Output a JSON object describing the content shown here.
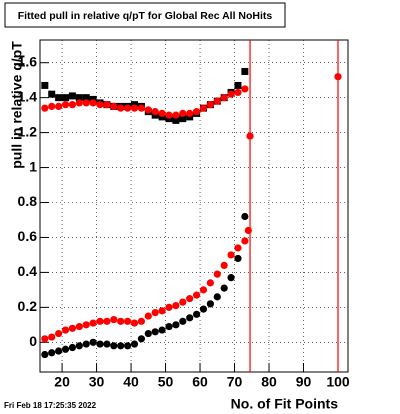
{
  "chart_data": {
    "type": "scatter",
    "title": "Fitted pull in relative q/pT for Global Rec All NoHits",
    "y_label": "pull in relative q/pT",
    "x_label": "No. of Fit Points",
    "timestamp": "Fri Feb 18 17:25:35 2022",
    "xlim": [
      13.6,
      102.9
    ],
    "ylim": [
      -0.17,
      1.73
    ],
    "xticks": [
      20,
      30,
      40,
      50,
      60,
      70,
      80,
      90,
      100
    ],
    "yticks": [
      0,
      0.2,
      0.4,
      0.6,
      0.8,
      1,
      1.2,
      1.4,
      1.6
    ],
    "grid": true,
    "vlines": [
      74.5,
      100
    ],
    "vline_color": "#ff0000",
    "series": [
      {
        "color": "#000000",
        "marker": "square",
        "x": [
          15,
          17,
          19,
          21,
          23,
          25,
          27,
          29,
          31,
          33,
          35,
          37,
          39,
          41,
          43,
          45,
          47,
          49,
          51,
          53,
          55,
          57,
          59,
          61,
          63,
          65,
          67,
          69,
          71,
          73
        ],
        "values": [
          1.47,
          1.42,
          1.4,
          1.4,
          1.41,
          1.4,
          1.4,
          1.39,
          1.37,
          1.36,
          1.35,
          1.35,
          1.35,
          1.36,
          1.35,
          1.32,
          1.3,
          1.29,
          1.28,
          1.27,
          1.28,
          1.29,
          1.31,
          1.34,
          1.36,
          1.38,
          1.4,
          1.43,
          1.47,
          1.55
        ]
      },
      {
        "color": "#ff0000",
        "marker": "circle",
        "x": [
          15,
          17,
          19,
          21,
          23,
          25,
          27,
          29,
          31,
          33,
          35,
          37,
          39,
          41,
          43,
          45,
          47,
          49,
          51,
          53,
          55,
          57,
          59,
          61,
          63,
          65,
          67,
          69,
          71,
          73,
          74.5,
          100
        ],
        "values": [
          1.34,
          1.35,
          1.35,
          1.36,
          1.36,
          1.37,
          1.37,
          1.37,
          1.36,
          1.36,
          1.35,
          1.34,
          1.34,
          1.34,
          1.34,
          1.33,
          1.32,
          1.31,
          1.3,
          1.3,
          1.31,
          1.31,
          1.32,
          1.34,
          1.36,
          1.38,
          1.4,
          1.42,
          1.43,
          1.45,
          1.18,
          1.52
        ]
      },
      {
        "color": "#000000",
        "marker": "circle",
        "x": [
          15,
          17,
          19,
          21,
          23,
          25,
          27,
          29,
          31,
          33,
          35,
          37,
          39,
          41,
          43,
          45,
          47,
          49,
          51,
          53,
          55,
          57,
          59,
          61,
          63,
          65,
          67,
          69,
          71,
          73
        ],
        "values": [
          -0.07,
          -0.06,
          -0.05,
          -0.04,
          -0.03,
          -0.02,
          -0.01,
          0.0,
          -0.01,
          -0.01,
          -0.02,
          -0.02,
          -0.02,
          -0.01,
          0.02,
          0.05,
          0.06,
          0.07,
          0.09,
          0.1,
          0.12,
          0.14,
          0.16,
          0.19,
          0.22,
          0.26,
          0.31,
          0.37,
          0.48,
          0.72
        ]
      },
      {
        "color": "#ff0000",
        "marker": "circle",
        "x": [
          15,
          17,
          19,
          21,
          23,
          25,
          27,
          29,
          31,
          33,
          35,
          37,
          39,
          41,
          43,
          45,
          47,
          49,
          51,
          53,
          55,
          57,
          59,
          61,
          63,
          65,
          67,
          69,
          71,
          73,
          74
        ],
        "values": [
          0.02,
          0.03,
          0.05,
          0.07,
          0.08,
          0.09,
          0.1,
          0.11,
          0.12,
          0.12,
          0.13,
          0.12,
          0.12,
          0.11,
          0.12,
          0.15,
          0.17,
          0.18,
          0.2,
          0.21,
          0.23,
          0.25,
          0.27,
          0.3,
          0.34,
          0.39,
          0.44,
          0.5,
          0.54,
          0.58,
          0.64
        ]
      }
    ]
  }
}
